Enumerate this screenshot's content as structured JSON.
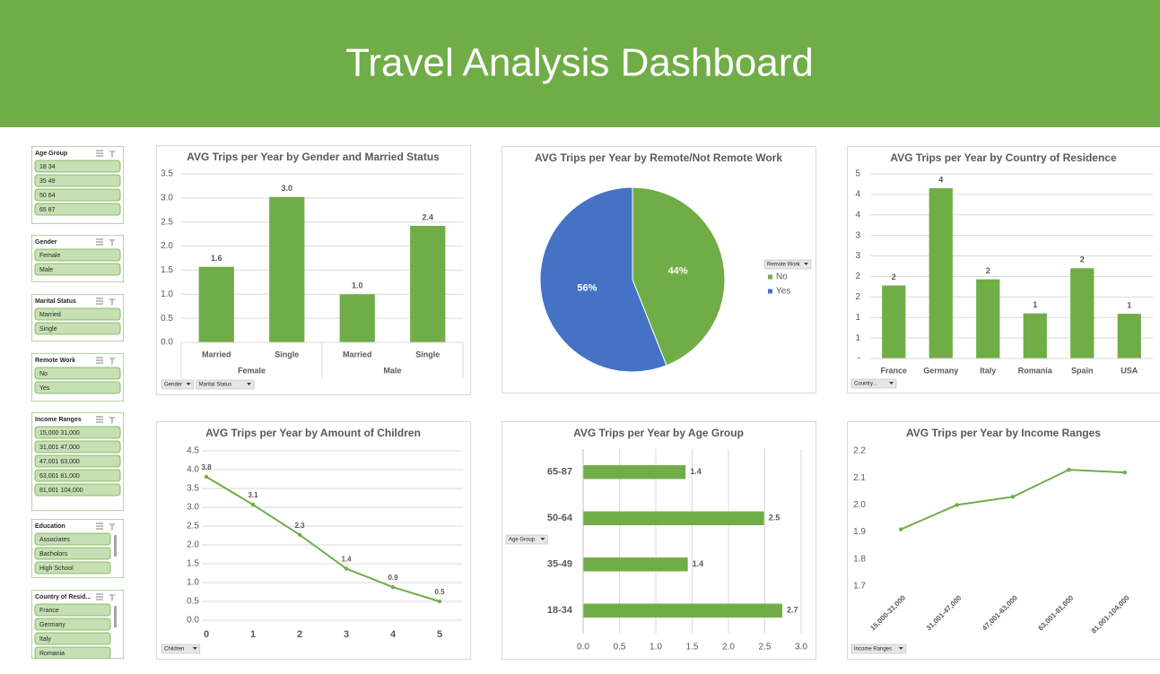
{
  "header": {
    "title": "Travel Analysis Dashboard"
  },
  "slicers": [
    {
      "title": "Age Group",
      "items": [
        "18 34",
        "35 49",
        "50 64",
        "65 87"
      ]
    },
    {
      "title": "Gender",
      "items": [
        "Female",
        "Male"
      ]
    },
    {
      "title": "Marital Status",
      "items": [
        "Married",
        "Single"
      ]
    },
    {
      "title": "Remote Work",
      "items": [
        "No",
        "Yes"
      ]
    },
    {
      "title": "Income Ranges",
      "items": [
        "15,000 31,000",
        "31,001 47,000",
        "47,001 63,000",
        "63,001 81,000",
        "81,001 104,000"
      ]
    },
    {
      "title": "Education",
      "items": [
        "Associates",
        "Bacholors",
        "High School"
      ]
    },
    {
      "title": "Country of Resid...",
      "items": [
        "France",
        "Germany",
        "Italy",
        "Romania"
      ]
    }
  ],
  "chart_data": [
    {
      "type": "bar",
      "title": "AVG Trips per Year by Gender and Married Status",
      "groups": [
        {
          "name": "Female",
          "categories": [
            "Married",
            "Single"
          ],
          "values": [
            1.57,
            3.02
          ],
          "value_labels": [
            "1.6",
            "3.0"
          ]
        },
        {
          "name": "Male",
          "categories": [
            "Married",
            "Single"
          ],
          "values": [
            1.0,
            2.42
          ],
          "value_labels": [
            "1.0",
            "2.4"
          ]
        }
      ],
      "color": "#70ad47",
      "ylim": [
        0,
        3.5
      ],
      "yticks": [
        {
          "value": 0,
          "label": "0.0"
        },
        0.5,
        {
          "value": 1,
          "label": "1.0"
        },
        1.5,
        {
          "value": 2,
          "label": "2.0"
        },
        2.5,
        {
          "value": 3,
          "label": "3.0"
        },
        3.5
      ],
      "grid": true,
      "filters": [
        "Gender",
        "Marital Status"
      ]
    },
    {
      "type": "pie",
      "title": "AVG Trips per Year by Remote/Not Remote Work",
      "categories": [
        "No",
        "Yes"
      ],
      "values": [
        44,
        56
      ],
      "value_labels": [
        "44%",
        "56%"
      ],
      "colors": [
        "#70ad47",
        "#4472c4"
      ],
      "legend_title": "Remote Work",
      "legend": "right"
    },
    {
      "type": "bar",
      "title": "AVG Trips per Year by Country of Residence",
      "categories": [
        "France",
        "Germany",
        "Italy",
        "Romania",
        "Spain",
        "USA"
      ],
      "values": [
        1.78,
        4.15,
        1.93,
        1.1,
        2.2,
        1.09
      ],
      "value_labels": [
        "2",
        "4",
        "2",
        "1",
        "2",
        "1"
      ],
      "color": "#70ad47",
      "ylim": [
        0,
        4.5
      ],
      "yticks": [
        {
          "value": 0,
          "label": "-"
        },
        {
          "value": 0.5,
          "label": "1"
        },
        1,
        {
          "value": 1.5,
          "label": "2"
        },
        2,
        {
          "value": 2.5,
          "label": "3"
        },
        3,
        {
          "value": 3.5,
          "label": "4"
        },
        4,
        {
          "value": 4.5,
          "label": "5"
        }
      ],
      "grid": true,
      "filters": [
        "Country..."
      ]
    },
    {
      "type": "line",
      "title": "AVG Trips per Year by Amount of Children",
      "categories": [
        "0",
        "1",
        "2",
        "3",
        "4",
        "5"
      ],
      "values": [
        3.81,
        3.07,
        2.27,
        1.37,
        0.88,
        0.5
      ],
      "value_labels": [
        "3.8",
        "3.1",
        "2.3",
        "1.4",
        "0.9",
        "0.5"
      ],
      "color": "#70ad47",
      "ylim": [
        0,
        4.5
      ],
      "yticks": [
        {
          "value": 0,
          "label": "0.0"
        },
        0.5,
        {
          "value": 1,
          "label": "1.0"
        },
        1.5,
        {
          "value": 2,
          "label": "2.0"
        },
        2.5,
        {
          "value": 3,
          "label": "3.0"
        },
        3.5,
        {
          "value": 4,
          "label": "4.0"
        },
        4.5
      ],
      "grid": true,
      "filters": [
        "Children"
      ]
    },
    {
      "type": "barh",
      "title": "AVG Trips per Year by Age Group",
      "categories": [
        "65-87",
        "50-64",
        "35-49",
        "18-34"
      ],
      "values": [
        1.41,
        2.49,
        1.44,
        2.74
      ],
      "value_labels": [
        "1.4",
        "2.5",
        "1.4",
        "2.7"
      ],
      "color": "#70ad47",
      "xlim": [
        0,
        3
      ],
      "xticks": [
        {
          "value": 0,
          "label": "0.0"
        },
        0.5,
        {
          "value": 1,
          "label": "1.0"
        },
        1.5,
        {
          "value": 2,
          "label": "2.0"
        },
        2.5,
        {
          "value": 3,
          "label": "3.0"
        }
      ],
      "grid": true,
      "filters": [
        "Age Group"
      ]
    },
    {
      "type": "line",
      "title": "AVG Trips per Year by Income Ranges",
      "categories": [
        "15,000-31,000",
        "31,001-47,000",
        "47,001-63,000",
        "63,001-81,000",
        "81,001-104,000"
      ],
      "values": [
        1.91,
        2.0,
        2.03,
        2.13,
        2.12
      ],
      "color": "#70ad47",
      "ylim": [
        1.7,
        2.2
      ],
      "yticks": [
        1.7,
        1.8,
        1.9,
        {
          "value": 2,
          "label": "2.0"
        },
        2.1,
        2.2
      ],
      "grid": false,
      "filters": [
        "Income Ranges"
      ]
    }
  ]
}
